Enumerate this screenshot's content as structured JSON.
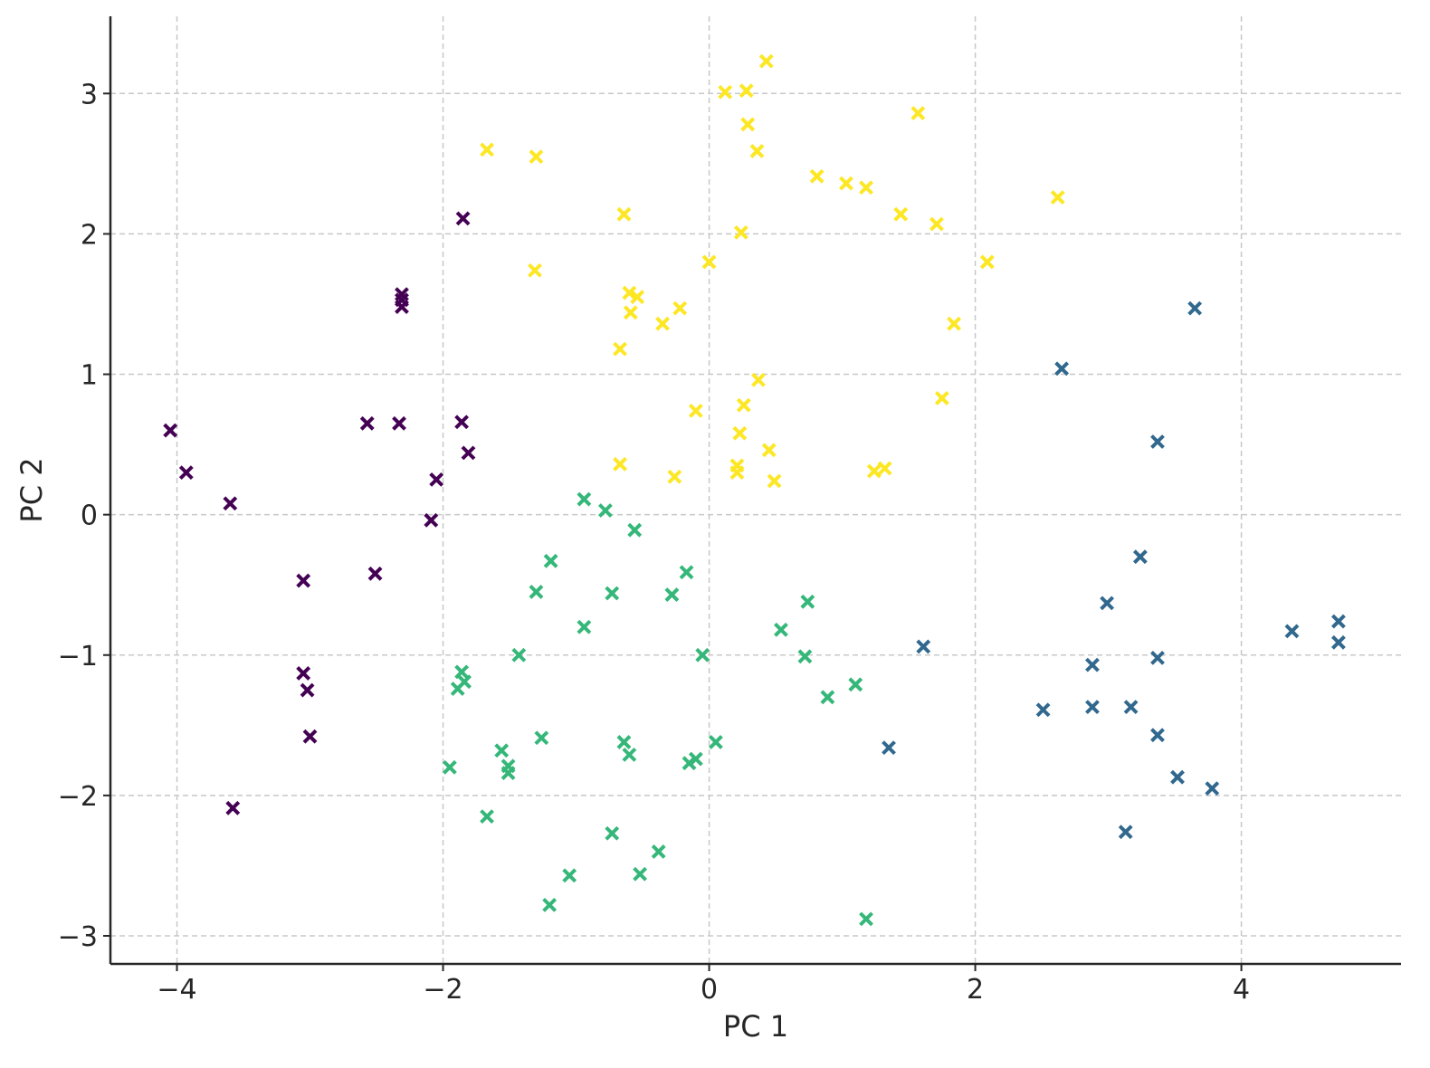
{
  "chart_data": {
    "type": "scatter",
    "title": "",
    "xlabel": "PC 1",
    "ylabel": "PC 2",
    "xlim": [
      -4.5,
      5.2
    ],
    "ylim": [
      -3.2,
      3.55
    ],
    "xticks": [
      -4,
      -2,
      0,
      2,
      4
    ],
    "yticks": [
      -3,
      -2,
      -1,
      0,
      1,
      2,
      3
    ],
    "xtick_labels": [
      "−4",
      "−2",
      "0",
      "2",
      "4"
    ],
    "ytick_labels": [
      "−3",
      "−2",
      "−1",
      "0",
      "1",
      "2",
      "3"
    ],
    "grid": true,
    "marker": "x",
    "series": [
      {
        "color": "#440154",
        "points": [
          [
            -4.05,
            0.6
          ],
          [
            -3.93,
            0.3
          ],
          [
            -3.6,
            0.08
          ],
          [
            -3.58,
            -2.09
          ],
          [
            -3.05,
            -0.47
          ],
          [
            -3.05,
            -1.13
          ],
          [
            -3.02,
            -1.25
          ],
          [
            -3.0,
            -1.58
          ],
          [
            -2.57,
            0.65
          ],
          [
            -2.51,
            -0.42
          ],
          [
            -2.33,
            0.65
          ],
          [
            -2.31,
            1.57
          ],
          [
            -2.31,
            1.53
          ],
          [
            -2.31,
            1.48
          ],
          [
            -2.09,
            -0.04
          ],
          [
            -2.05,
            0.25
          ],
          [
            -1.85,
            2.11
          ],
          [
            -1.86,
            0.66
          ],
          [
            -1.81,
            0.44
          ]
        ]
      },
      {
        "color": "#31688e",
        "points": [
          [
            1.61,
            -0.94
          ],
          [
            1.35,
            -1.66
          ],
          [
            2.51,
            -1.39
          ],
          [
            2.65,
            1.04
          ],
          [
            2.88,
            -1.07
          ],
          [
            2.88,
            -1.37
          ],
          [
            2.99,
            -0.63
          ],
          [
            3.13,
            -2.26
          ],
          [
            3.17,
            -1.37
          ],
          [
            3.24,
            -0.3
          ],
          [
            3.37,
            0.52
          ],
          [
            3.37,
            -1.02
          ],
          [
            3.37,
            -1.57
          ],
          [
            3.52,
            -1.87
          ],
          [
            3.65,
            1.47
          ],
          [
            3.78,
            -1.95
          ],
          [
            4.38,
            -0.83
          ],
          [
            4.73,
            -0.76
          ],
          [
            4.73,
            -0.91
          ]
        ]
      },
      {
        "color": "#35b779",
        "points": [
          [
            -1.95,
            -1.8
          ],
          [
            -1.89,
            -1.24
          ],
          [
            -1.86,
            -1.12
          ],
          [
            -1.84,
            -1.19
          ],
          [
            -1.67,
            -2.15
          ],
          [
            -1.56,
            -1.68
          ],
          [
            -1.51,
            -1.79
          ],
          [
            -1.51,
            -1.84
          ],
          [
            -1.43,
            -1.0
          ],
          [
            -1.3,
            -0.55
          ],
          [
            -1.26,
            -1.59
          ],
          [
            -1.19,
            -0.33
          ],
          [
            -1.2,
            -2.78
          ],
          [
            -1.05,
            -2.57
          ],
          [
            -0.94,
            0.11
          ],
          [
            -0.94,
            -0.8
          ],
          [
            -0.78,
            0.03
          ],
          [
            -0.73,
            -0.56
          ],
          [
            -0.73,
            -2.27
          ],
          [
            -0.64,
            -1.62
          ],
          [
            -0.6,
            -1.71
          ],
          [
            -0.56,
            -0.11
          ],
          [
            -0.52,
            -2.56
          ],
          [
            -0.38,
            -2.4
          ],
          [
            -0.28,
            -0.57
          ],
          [
            -0.17,
            -0.41
          ],
          [
            -0.15,
            -1.77
          ],
          [
            -0.1,
            -1.74
          ],
          [
            -0.05,
            -1.0
          ],
          [
            0.05,
            -1.62
          ],
          [
            0.54,
            -0.82
          ],
          [
            0.72,
            -1.01
          ],
          [
            0.74,
            -0.62
          ],
          [
            0.89,
            -1.3
          ],
          [
            1.1,
            -1.21
          ],
          [
            1.18,
            -2.88
          ]
        ]
      },
      {
        "color": "#fde725",
        "points": [
          [
            -1.67,
            2.6
          ],
          [
            -1.3,
            2.55
          ],
          [
            -1.31,
            1.74
          ],
          [
            -0.64,
            2.14
          ],
          [
            -0.6,
            1.58
          ],
          [
            -0.59,
            1.44
          ],
          [
            -0.54,
            1.55
          ],
          [
            -0.67,
            1.18
          ],
          [
            -0.67,
            0.36
          ],
          [
            -0.35,
            1.36
          ],
          [
            -0.22,
            1.47
          ],
          [
            -0.26,
            0.27
          ],
          [
            -0.1,
            0.74
          ],
          [
            0.0,
            1.8
          ],
          [
            0.12,
            3.01
          ],
          [
            0.28,
            3.02
          ],
          [
            0.29,
            2.78
          ],
          [
            0.36,
            2.59
          ],
          [
            0.43,
            3.23
          ],
          [
            0.24,
            2.01
          ],
          [
            0.26,
            0.78
          ],
          [
            0.23,
            0.58
          ],
          [
            0.21,
            0.35
          ],
          [
            0.21,
            0.3
          ],
          [
            0.37,
            0.96
          ],
          [
            0.45,
            0.46
          ],
          [
            0.49,
            0.24
          ],
          [
            0.81,
            2.41
          ],
          [
            1.03,
            2.36
          ],
          [
            1.18,
            2.33
          ],
          [
            1.24,
            0.31
          ],
          [
            1.32,
            0.33
          ],
          [
            1.44,
            2.14
          ],
          [
            1.57,
            2.86
          ],
          [
            1.71,
            2.07
          ],
          [
            1.75,
            0.83
          ],
          [
            1.84,
            1.36
          ],
          [
            2.09,
            1.8
          ],
          [
            2.62,
            2.26
          ]
        ]
      }
    ]
  }
}
